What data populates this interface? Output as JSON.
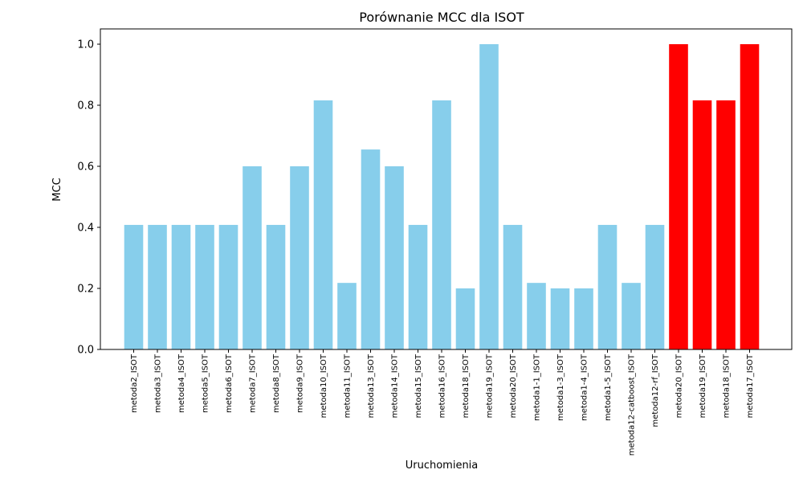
{
  "chart_data": {
    "type": "bar",
    "title": "Porównanie MCC dla ISOT",
    "xlabel": "Uruchomienia",
    "ylabel": "MCC",
    "ylim": [
      0,
      1.05
    ],
    "yticks": [
      "0.0",
      "0.2",
      "0.4",
      "0.6",
      "0.8",
      "1.0"
    ],
    "grid": false,
    "categories": [
      "metoda2_ISOT",
      "metoda3_ISOT",
      "metoda4_ISOT",
      "metoda5_ISOT",
      "metoda6_ISOT",
      "metoda7_ISOT",
      "metoda8_ISOT",
      "metoda9_ISOT",
      "metoda10_ISOT",
      "metoda11_ISOT",
      "metoda13_ISOT",
      "metoda14_ISOT",
      "metoda15_ISOT",
      "metoda16_ISOT",
      "metoda18_ISOT",
      "metoda19_ISOT",
      "metoda20_ISOT",
      "metoda1-1_ISOT",
      "metoda1-3_ISOT",
      "metoda1-4_ISOT",
      "metoda1-5_ISOT",
      "metoda12-catboost_ISOT",
      "metoda12-rf_ISOT",
      "metoda20_ISOT",
      "metoda19_ISOT",
      "metoda18_ISOT",
      "metoda17_ISOT"
    ],
    "values": [
      0.408,
      0.408,
      0.408,
      0.408,
      0.408,
      0.6,
      0.408,
      0.6,
      0.816,
      0.218,
      0.655,
      0.6,
      0.408,
      0.816,
      0.2,
      1.0,
      0.408,
      0.218,
      0.2,
      0.2,
      0.408,
      0.218,
      0.408,
      1.0,
      0.816,
      0.816,
      1.0
    ],
    "highlighted": [
      false,
      false,
      false,
      false,
      false,
      false,
      false,
      false,
      false,
      false,
      false,
      false,
      false,
      false,
      false,
      false,
      false,
      false,
      false,
      false,
      false,
      false,
      false,
      true,
      true,
      true,
      true
    ],
    "colors": {
      "default": "#87ceeb",
      "highlight": "#ff0000"
    }
  }
}
